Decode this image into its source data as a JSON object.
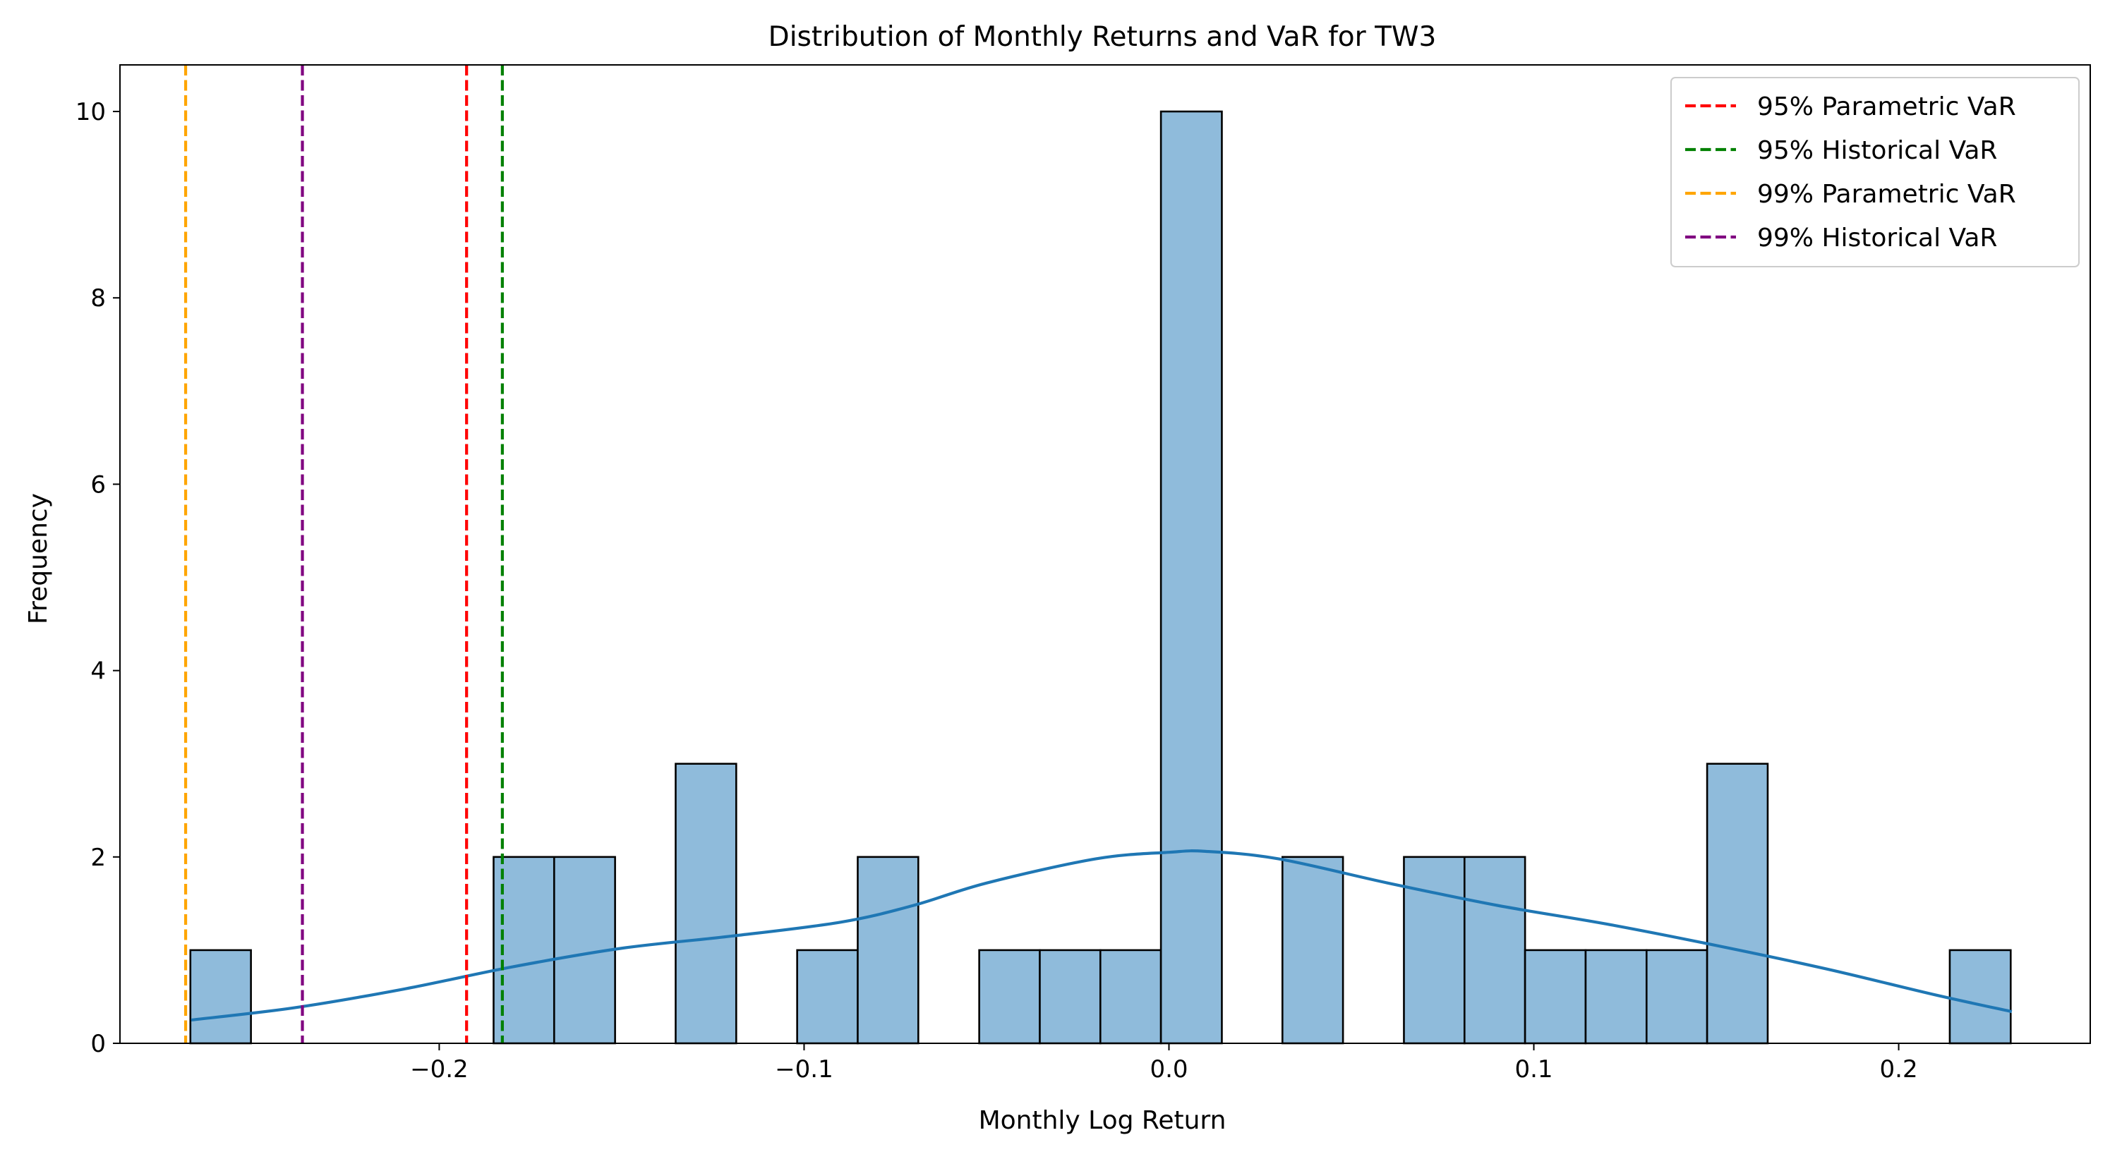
{
  "chart_data": {
    "type": "histogram",
    "title": "Distribution of Monthly Returns and VaR for TW3",
    "xlabel": "Monthly Log Return",
    "ylabel": "Frequency",
    "xlim": [
      -0.2875,
      0.2525
    ],
    "ylim": [
      0,
      10.5
    ],
    "grid": false,
    "legend_position": "top-right",
    "x_ticks": [
      -0.2,
      -0.1,
      0.0,
      0.1,
      0.2
    ],
    "x_tick_labels": [
      "−0.2",
      "−0.1",
      "0.0",
      "0.1",
      "0.2"
    ],
    "y_ticks": [
      0,
      2,
      4,
      6,
      8,
      10
    ],
    "y_tick_labels": [
      "0",
      "2",
      "4",
      "6",
      "8",
      "10"
    ],
    "bin_edges": [
      -0.2682,
      -0.2516,
      -0.235,
      -0.2183,
      -0.2017,
      -0.1851,
      -0.1685,
      -0.1518,
      -0.1352,
      -0.1186,
      -0.1019,
      -0.0853,
      -0.0687,
      -0.052,
      -0.0354,
      -0.0188,
      -0.0022,
      0.0145,
      0.0311,
      0.0477,
      0.0644,
      0.081,
      0.0976,
      0.1142,
      0.1309,
      0.1475,
      0.1641,
      0.1808,
      0.1974,
      0.214,
      0.2307
    ],
    "counts": [
      1,
      0,
      0,
      0,
      0,
      2,
      2,
      0,
      3,
      0,
      1,
      2,
      0,
      1,
      1,
      1,
      10,
      0,
      2,
      0,
      2,
      2,
      1,
      1,
      1,
      3,
      0,
      0,
      0,
      1
    ],
    "bar_color": "#8fbbdb",
    "bar_edge_color": "#000000",
    "kde": {
      "color": "#1f77b4",
      "x": [
        -0.268,
        -0.24,
        -0.21,
        -0.18,
        -0.15,
        -0.12,
        -0.09,
        -0.07,
        -0.05,
        -0.02,
        0.0,
        0.01,
        0.03,
        0.06,
        0.09,
        0.12,
        0.15,
        0.18,
        0.21,
        0.231
      ],
      "y": [
        0.25,
        0.38,
        0.58,
        0.82,
        1.02,
        1.15,
        1.3,
        1.48,
        1.72,
        1.98,
        2.05,
        2.06,
        1.98,
        1.72,
        1.48,
        1.28,
        1.05,
        0.8,
        0.52,
        0.34
      ]
    },
    "vlines": [
      {
        "name": "95% Parametric VaR",
        "x": -0.1925,
        "color": "#ff0000"
      },
      {
        "name": "95% Historical VaR",
        "x": -0.1827,
        "color": "#008000"
      },
      {
        "name": "99% Parametric VaR",
        "x": -0.2695,
        "color": "#ffa500"
      },
      {
        "name": "99% Historical VaR",
        "x": -0.2375,
        "color": "#800080"
      }
    ]
  }
}
